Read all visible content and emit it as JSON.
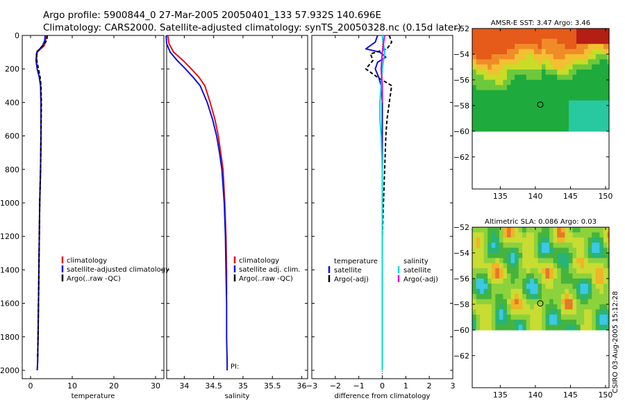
{
  "title_line1": "Argo profile:  5900844_0 27-Mar-2005 20050401_133 57.932S 140.696E",
  "title_line2": "Climatology: CARS2000. Satellite-adjusted climatology: synTS_20050328.nc (0.15d later)",
  "credit": "CSIRO 03-Aug-2005 15:12:28",
  "colors": {
    "red": "#e0101a",
    "blue": "#1010d8",
    "black": "#000000",
    "cyan": "#00d8e0",
    "magenta": "#e000e0",
    "dotted": "#222222"
  },
  "chart_data": [
    {
      "type": "line",
      "name": "temperature-panel",
      "xlabel": "temperature",
      "xlim": [
        -2,
        32
      ],
      "ylim": [
        0,
        2050
      ],
      "xticks": [
        0,
        10,
        20,
        30
      ],
      "yticks": [
        0,
        200,
        400,
        600,
        800,
        1000,
        1200,
        1400,
        1600,
        1800,
        2000
      ],
      "legend": [
        "climatology",
        "satellite-adjusted climatology",
        "Argo(..raw -QC)"
      ],
      "series": [
        {
          "name": "climatology",
          "color": "red",
          "x": [
            3.7,
            3.6,
            3.3,
            1.6,
            1.4,
            1.6,
            2.1,
            2.4,
            2.5,
            2.5,
            2.4,
            2.2,
            2.1,
            2.0,
            1.9,
            1.8,
            1.7,
            1.6
          ],
          "y": [
            0,
            30,
            60,
            100,
            150,
            200,
            250,
            300,
            400,
            600,
            800,
            1000,
            1200,
            1400,
            1600,
            1800,
            1950,
            2000
          ]
        },
        {
          "name": "satellite-adjusted climatology",
          "color": "blue",
          "x": [
            3.5,
            3.4,
            2.9,
            1.5,
            1.3,
            1.6,
            2.1,
            2.4,
            2.5,
            2.5,
            2.4,
            2.2,
            2.1,
            2.0,
            1.9,
            1.8,
            1.7,
            1.6
          ],
          "y": [
            0,
            30,
            60,
            100,
            150,
            200,
            250,
            300,
            400,
            600,
            800,
            1000,
            1200,
            1400,
            1600,
            1800,
            1950,
            2000
          ]
        },
        {
          "name": "Argo(..raw -QC)",
          "color": "black",
          "dashed": true,
          "x": [
            4.0,
            3.9,
            3.0,
            1.4,
            1.5,
            1.9,
            2.3,
            2.5,
            2.6,
            2.5,
            2.4,
            2.2,
            2.1,
            2.0,
            1.9,
            1.8,
            1.7
          ],
          "y": [
            0,
            30,
            60,
            100,
            150,
            200,
            250,
            300,
            400,
            600,
            800,
            1000,
            1200,
            1400,
            1600,
            1800,
            1930
          ]
        }
      ]
    },
    {
      "type": "line",
      "name": "salinity-panel",
      "xlabel": "salinity",
      "xlim": [
        33.7,
        36.1
      ],
      "ylim": [
        0,
        2050
      ],
      "xticks": [
        34,
        34.5,
        35,
        35.5,
        36
      ],
      "xtick_labels": [
        "34",
        "34.5",
        "35",
        "35.5",
        "36"
      ],
      "legend": [
        "climatology",
        "satellite adj. clim.",
        "Argo(..raw -QC)"
      ],
      "annotation": "PI:",
      "series": [
        {
          "name": "climatology",
          "color": "red",
          "x": [
            33.72,
            33.74,
            33.82,
            33.98,
            34.12,
            34.25,
            34.35,
            34.44,
            34.52,
            34.58,
            34.62,
            34.66,
            34.69,
            34.71,
            34.72,
            34.72,
            34.72
          ],
          "y": [
            0,
            50,
            100,
            150,
            200,
            250,
            300,
            400,
            500,
            600,
            700,
            800,
            1000,
            1200,
            1400,
            1500,
            1550
          ]
        },
        {
          "name": "satellite adj. clim.",
          "color": "blue",
          "x": [
            33.69,
            33.7,
            33.76,
            33.88,
            34.02,
            34.15,
            34.27,
            34.39,
            34.48,
            34.55,
            34.6,
            34.64,
            34.68,
            34.7,
            34.71,
            34.72,
            34.72,
            34.73,
            34.73
          ],
          "y": [
            0,
            50,
            100,
            150,
            200,
            250,
            300,
            400,
            500,
            600,
            700,
            800,
            1000,
            1200,
            1400,
            1600,
            1800,
            1950,
            2000
          ]
        }
      ]
    },
    {
      "type": "line",
      "name": "difference-panel",
      "xlabel": "difference from climatology",
      "xlim": [
        -3,
        3
      ],
      "ylim": [
        0,
        2050
      ],
      "xticks": [
        -3,
        -2,
        -1,
        0,
        1,
        2,
        3
      ],
      "legend_left": [
        "temperature",
        "satellite",
        "Argo(-adj)"
      ],
      "legend_right": [
        "salinity",
        "satellite",
        "Argo(-adj)"
      ],
      "series": [
        {
          "name": "temperature satellite",
          "color": "blue",
          "x": [
            -0.2,
            -0.3,
            -0.7,
            -0.1,
            0.15,
            -0.2,
            -0.3,
            -0.15,
            -0.05,
            0.0,
            0.0,
            0.0,
            0.0,
            0.0,
            0.0
          ],
          "y": [
            0,
            40,
            80,
            100,
            130,
            160,
            200,
            250,
            300,
            400,
            600,
            800,
            1000,
            1200,
            1400
          ]
        },
        {
          "name": "temperature Argo(-adj)",
          "color": "black",
          "dashed": true,
          "x": [
            0.3,
            0.4,
            0.2,
            -0.5,
            -0.4,
            -0.7,
            -0.2,
            0.4,
            0.3,
            0.2,
            0.15,
            0.1,
            0.05,
            0.0
          ],
          "y": [
            0,
            40,
            80,
            110,
            150,
            200,
            250,
            300,
            400,
            500,
            600,
            800,
            1000,
            1200
          ]
        },
        {
          "name": "salinity satellite",
          "color": "cyan",
          "x": [
            0.0,
            0.1,
            0.0,
            -0.05,
            -0.1,
            -0.1,
            -0.05,
            0.0,
            0.0,
            0.0
          ],
          "y": [
            0,
            100,
            200,
            300,
            400,
            500,
            600,
            800,
            1200,
            2000
          ]
        },
        {
          "name": "salinity Argo(-adj)",
          "color": "magenta",
          "x": [
            0.1,
            0.0,
            -0.05,
            0.0,
            0.0
          ],
          "y": [
            0,
            100,
            200,
            300,
            400
          ]
        }
      ]
    },
    {
      "type": "heatmap",
      "name": "sst-map",
      "title": "AMSR-E SST: 3.47 Argo: 3.46",
      "xlim": [
        131,
        150.5
      ],
      "ylim": [
        -64.5,
        -52
      ],
      "xticks": [
        135,
        140,
        145,
        150
      ],
      "yticks": [
        -52,
        -54,
        -56,
        -58,
        -60,
        -62
      ],
      "ytick_labels": [
        "-52",
        "-54",
        "-56",
        "-58",
        "-60",
        "-62"
      ],
      "data_extent_lat": [
        -60,
        -52
      ],
      "marker": {
        "lon": 140.7,
        "lat": -57.93
      }
    },
    {
      "type": "heatmap",
      "name": "sla-map",
      "title": "Altimetric SLA: 0.086 Argo: 0.03",
      "xlim": [
        131,
        150.5
      ],
      "ylim": [
        -64.5,
        -52
      ],
      "xticks": [
        135,
        140,
        145,
        150
      ],
      "yticks": [
        -52,
        -54,
        -56,
        -58,
        -60,
        -62
      ],
      "ytick_labels": [
        "-52",
        "-54",
        "-56",
        "-58",
        "-60",
        "-62"
      ],
      "data_extent_lat": [
        -60,
        -52
      ],
      "marker": {
        "lon": 140.7,
        "lat": -57.93
      }
    }
  ]
}
